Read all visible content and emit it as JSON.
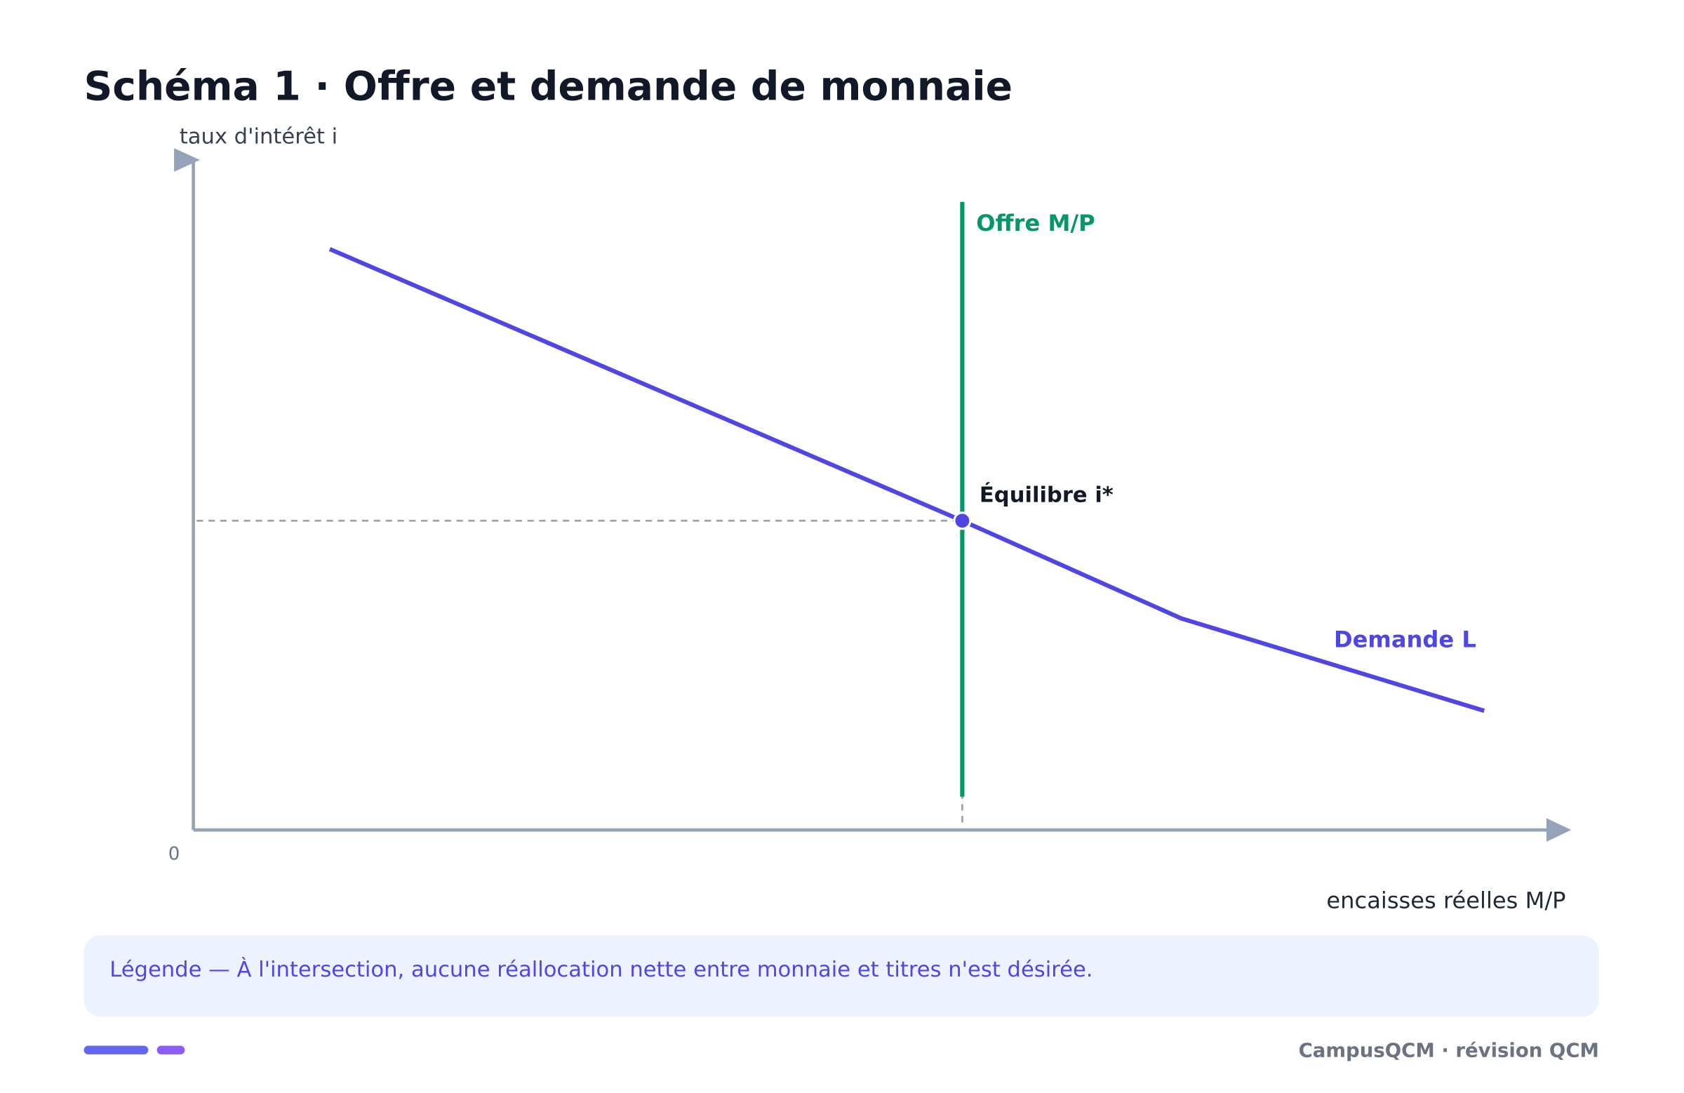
{
  "title": "Schéma 1 · Offre et demande de monnaie",
  "axes": {
    "y_label": "taux d'intérêt i",
    "x_label": "encaisses réelles M/P",
    "origin": "0"
  },
  "curves": {
    "supply": "Offre M/P",
    "demand": "Demande L",
    "equilibrium": "Équilibre i*"
  },
  "legend": "Légende — À l'intersection, aucune réallocation nette entre monnaie et titres n'est désirée.",
  "footer": "CampusQCM · révision QCM"
}
